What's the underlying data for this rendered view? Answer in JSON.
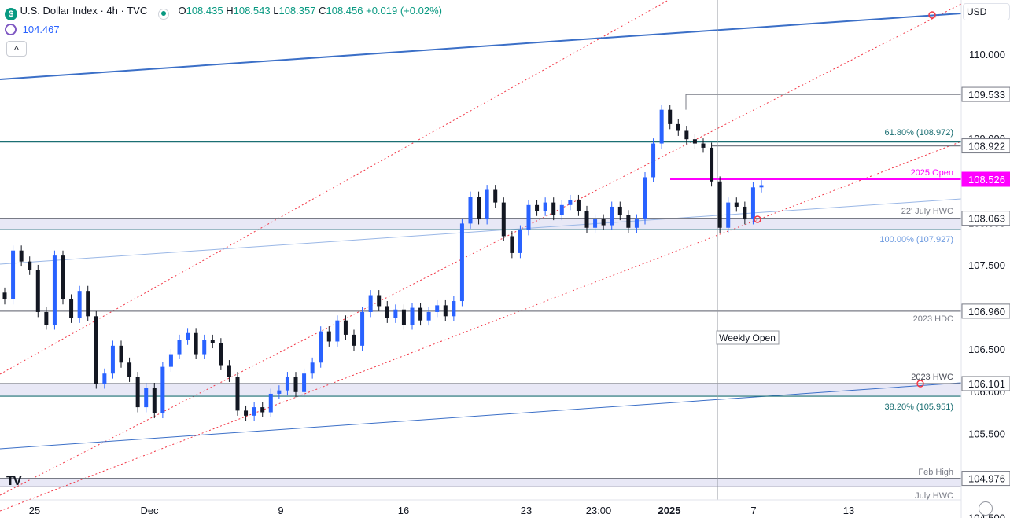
{
  "header": {
    "symbol_title": "U.S. Dollar Index · 4h · TVC",
    "ohlc": {
      "o_label": "O",
      "o": "108.435",
      "h_label": "H",
      "h": "108.543",
      "l_label": "L",
      "l": "108.357",
      "c_label": "C",
      "c": "108.456",
      "change": "+0.019 (+0.02%)"
    },
    "indicator_value": "104.467",
    "collapse_button": "^",
    "currency": "USD",
    "logo_text": "TV"
  },
  "colors": {
    "up": "#2962ff",
    "down": "#131722",
    "accent": "#2962ff",
    "magenta": "#ff00ff",
    "zone_fill": "#e8e8f6",
    "level": "#787b86",
    "fib": "#1b6f73",
    "channel": "#f23645",
    "trend_dark": "#3b6fc7",
    "trend_light": "#9ab7e6"
  },
  "chart_data": {
    "type": "candlestick",
    "timeframe": "4h",
    "ylim": [
      104.75,
      111.0
    ],
    "y_ticks": [
      "110.000",
      "109.500",
      "109.000",
      "108.500",
      "108.000",
      "107.500",
      "107.000",
      "106.500",
      "106.000",
      "105.500",
      "105.000",
      "104.500"
    ],
    "x_ticks": [
      "25",
      "Dec",
      "9",
      "16",
      "23",
      "23:00",
      "2025",
      "7",
      "13"
    ],
    "candles": [
      {
        "o": 107.18,
        "c": 107.1
      },
      {
        "o": 107.1,
        "c": 107.68
      },
      {
        "o": 107.68,
        "c": 107.55
      },
      {
        "o": 107.55,
        "c": 107.45
      },
      {
        "o": 107.45,
        "c": 106.95
      },
      {
        "o": 106.95,
        "c": 106.8
      },
      {
        "o": 106.8,
        "c": 107.62
      },
      {
        "o": 107.62,
        "c": 107.1
      },
      {
        "o": 107.1,
        "c": 106.88
      },
      {
        "o": 106.88,
        "c": 107.2
      },
      {
        "o": 107.2,
        "c": 106.9
      },
      {
        "o": 106.9,
        "c": 106.1
      },
      {
        "o": 106.1,
        "c": 106.22
      },
      {
        "o": 106.22,
        "c": 106.55
      },
      {
        "o": 106.55,
        "c": 106.35
      },
      {
        "o": 106.35,
        "c": 106.18
      },
      {
        "o": 106.18,
        "c": 105.82
      },
      {
        "o": 105.82,
        "c": 106.05
      },
      {
        "o": 106.05,
        "c": 105.75
      },
      {
        "o": 105.75,
        "c": 106.3
      },
      {
        "o": 106.3,
        "c": 106.45
      },
      {
        "o": 106.45,
        "c": 106.62
      },
      {
        "o": 106.62,
        "c": 106.7
      },
      {
        "o": 106.7,
        "c": 106.45
      },
      {
        "o": 106.45,
        "c": 106.62
      },
      {
        "o": 106.62,
        "c": 106.58
      },
      {
        "o": 106.58,
        "c": 106.32
      },
      {
        "o": 106.32,
        "c": 106.18
      },
      {
        "o": 106.18,
        "c": 105.78
      },
      {
        "o": 105.78,
        "c": 105.72
      },
      {
        "o": 105.72,
        "c": 105.82
      },
      {
        "o": 105.82,
        "c": 105.76
      },
      {
        "o": 105.76,
        "c": 105.98
      },
      {
        "o": 105.98,
        "c": 106.02
      },
      {
        "o": 106.02,
        "c": 106.18
      },
      {
        "o": 106.18,
        "c": 106.0
      },
      {
        "o": 106.0,
        "c": 106.22
      },
      {
        "o": 106.22,
        "c": 106.35
      },
      {
        "o": 106.35,
        "c": 106.72
      },
      {
        "o": 106.72,
        "c": 106.6
      },
      {
        "o": 106.6,
        "c": 106.85
      },
      {
        "o": 106.85,
        "c": 106.68
      },
      {
        "o": 106.68,
        "c": 106.55
      },
      {
        "o": 106.55,
        "c": 106.95
      },
      {
        "o": 106.95,
        "c": 107.15
      },
      {
        "o": 107.15,
        "c": 107.02
      },
      {
        "o": 107.02,
        "c": 106.88
      },
      {
        "o": 106.88,
        "c": 106.98
      },
      {
        "o": 106.98,
        "c": 106.8
      },
      {
        "o": 106.8,
        "c": 107.0
      },
      {
        "o": 107.0,
        "c": 106.85
      },
      {
        "o": 106.85,
        "c": 106.95
      },
      {
        "o": 106.95,
        "c": 107.03
      },
      {
        "o": 107.03,
        "c": 106.9
      },
      {
        "o": 106.9,
        "c": 107.08
      },
      {
        "o": 107.08,
        "c": 108.0
      },
      {
        "o": 108.0,
        "c": 108.32
      },
      {
        "o": 108.32,
        "c": 108.05
      },
      {
        "o": 108.05,
        "c": 108.4
      },
      {
        "o": 108.4,
        "c": 108.25
      },
      {
        "o": 108.25,
        "c": 107.85
      },
      {
        "o": 107.85,
        "c": 107.65
      },
      {
        "o": 107.65,
        "c": 107.92
      },
      {
        "o": 107.92,
        "c": 108.22
      },
      {
        "o": 108.22,
        "c": 108.15
      },
      {
        "o": 108.15,
        "c": 108.25
      },
      {
        "o": 108.25,
        "c": 108.1
      },
      {
        "o": 108.1,
        "c": 108.22
      },
      {
        "o": 108.22,
        "c": 108.28
      },
      {
        "o": 108.28,
        "c": 108.15
      },
      {
        "o": 108.15,
        "c": 107.95
      },
      {
        "o": 107.95,
        "c": 108.05
      },
      {
        "o": 108.05,
        "c": 107.98
      },
      {
        "o": 107.98,
        "c": 108.2
      },
      {
        "o": 108.2,
        "c": 108.1
      },
      {
        "o": 108.1,
        "c": 107.95
      },
      {
        "o": 107.95,
        "c": 108.05
      },
      {
        "o": 108.05,
        "c": 108.55
      },
      {
        "o": 108.55,
        "c": 108.95
      },
      {
        "o": 108.95,
        "c": 109.35
      },
      {
        "o": 109.35,
        "c": 109.18
      },
      {
        "o": 109.18,
        "c": 109.1
      },
      {
        "o": 109.1,
        "c": 109.0
      },
      {
        "o": 109.0,
        "c": 108.95
      },
      {
        "o": 108.95,
        "c": 108.9
      },
      {
        "o": 108.9,
        "c": 108.5
      },
      {
        "o": 108.5,
        "c": 107.95
      },
      {
        "o": 107.95,
        "c": 108.25
      },
      {
        "o": 108.25,
        "c": 108.2
      },
      {
        "o": 108.2,
        "c": 108.05
      },
      {
        "o": 108.05,
        "c": 108.43
      },
      {
        "o": 108.43,
        "c": 108.456
      }
    ],
    "annotations": {
      "levels": [
        {
          "label": "Feb High",
          "value": "104.976"
        },
        {
          "label": "July HWC",
          "value": "104.875"
        },
        {
          "label": "2023 HWC",
          "value": "106.101"
        },
        {
          "label": "38.20% (105.951)",
          "value": "105.951"
        },
        {
          "label": "2023 HDC",
          "value": "106.960"
        },
        {
          "label": "22' July HWC",
          "value": "108.063"
        },
        {
          "label": "100.00% (107.927)",
          "value": "107.927"
        },
        {
          "label": "2025 Open",
          "value": "108.526"
        },
        {
          "label": "61.80% (108.972)",
          "value": "108.972"
        },
        {
          "label": "",
          "value": "108.922"
        },
        {
          "label": "",
          "value": "109.533"
        }
      ],
      "weekly_open_label": "Weekly Open"
    }
  }
}
